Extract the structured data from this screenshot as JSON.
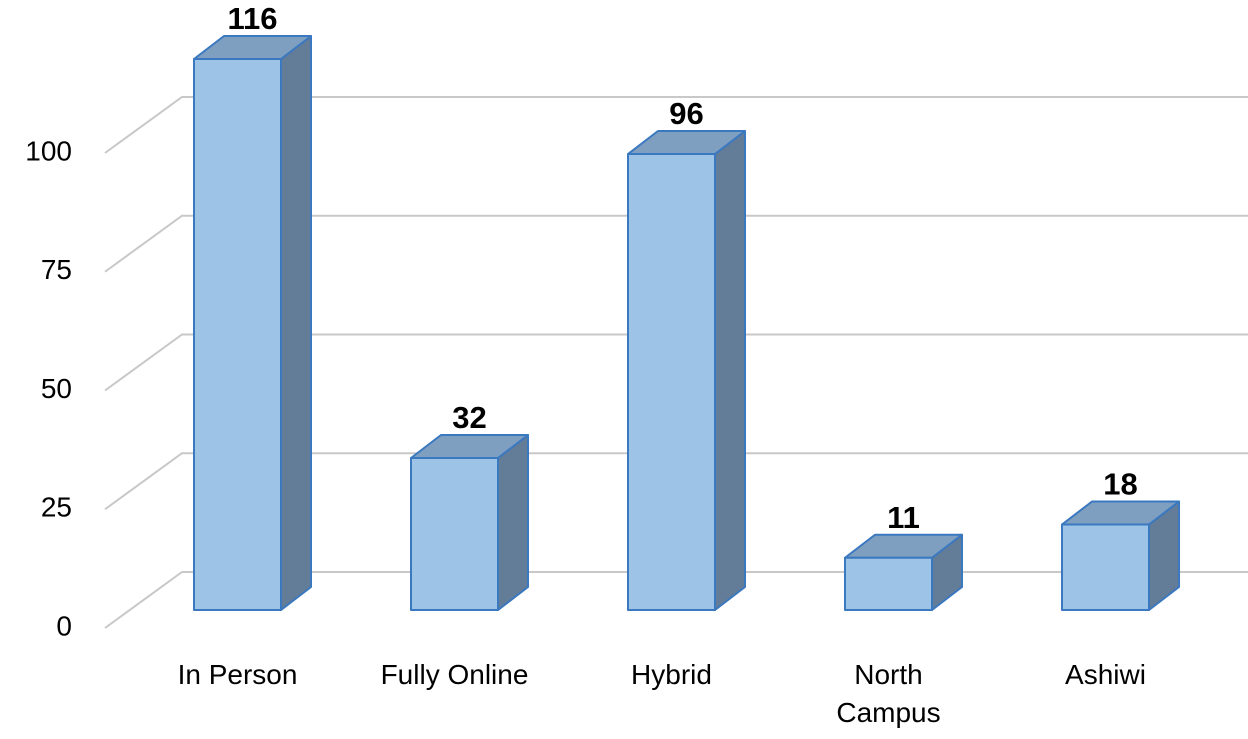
{
  "chart_data": {
    "type": "bar3d",
    "categories": [
      "In Person",
      "Fully Online",
      "Hybrid",
      "North\nCampus",
      "Ashiwi"
    ],
    "values": [
      116,
      32,
      96,
      11,
      18
    ],
    "color": "#9dc3e6",
    "ylim": [
      0,
      100
    ],
    "yticks": [
      0,
      25,
      50,
      75,
      100
    ],
    "grid": true
  }
}
